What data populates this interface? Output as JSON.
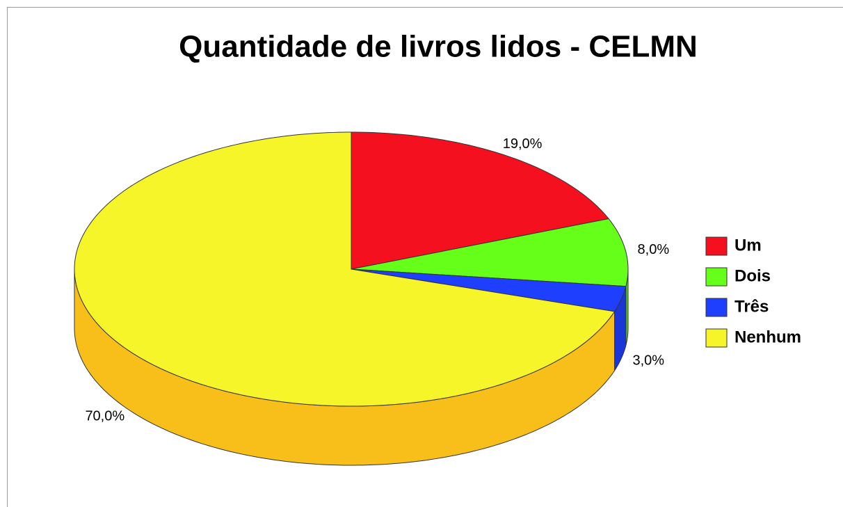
{
  "chart_data": {
    "type": "pie",
    "title": "Quantidade de livros lidos - CELMN",
    "categories": [
      "Um",
      "Dois",
      "Três",
      "Nenhum"
    ],
    "values": [
      19,
      8,
      3,
      70
    ],
    "value_labels": [
      "19,0%",
      "8,0%",
      "3,0%",
      "70,0%"
    ],
    "colors": [
      "#f5101f",
      "#66ff1a",
      "#1f3fff",
      "#f5f52a"
    ],
    "legend": "right"
  }
}
